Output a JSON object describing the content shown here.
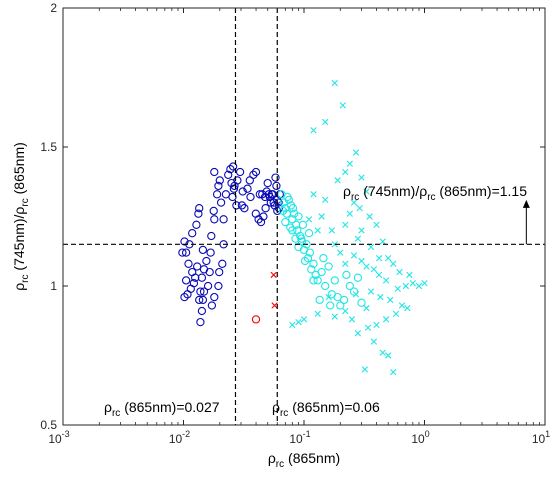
{
  "chart_data": {
    "type": "scatter",
    "xscale": "log",
    "xlim": [
      0.001,
      10
    ],
    "ylim": [
      0.5,
      2
    ],
    "x_ticks": [
      {
        "value": 0.001,
        "base": "10",
        "exp": "-3"
      },
      {
        "value": 0.01,
        "base": "10",
        "exp": "-2"
      },
      {
        "value": 0.1,
        "base": "10",
        "exp": "-1"
      },
      {
        "value": 1,
        "base": "10",
        "exp": "0"
      },
      {
        "value": 10,
        "base": "10",
        "exp": "1"
      }
    ],
    "y_ticks": [
      {
        "value": 0.5,
        "label": "0.5"
      },
      {
        "value": 1,
        "label": "1"
      },
      {
        "value": 1.5,
        "label": "1.5"
      },
      {
        "value": 2,
        "label": "2"
      }
    ],
    "xlabel": {
      "rho": "ρ",
      "sub": "rc",
      "rest": " (865nm)"
    },
    "ylabel": {
      "rho1": "ρ",
      "sub1": "rc",
      "mid": " (745nm)/",
      "rho2": "ρ",
      "sub2": "rc",
      "rest": " (865nm)"
    },
    "grid": false,
    "reference_lines": [
      {
        "orientation": "vertical",
        "value": 0.027,
        "style": "dashed",
        "label": {
          "rho": "ρ",
          "sub": "rc",
          "rest": " (865nm)=0.027"
        }
      },
      {
        "orientation": "vertical",
        "value": 0.06,
        "style": "dashed",
        "label": {
          "rho": "ρ",
          "sub": "rc",
          "rest": " (865nm)=0.06"
        }
      },
      {
        "orientation": "horizontal",
        "value": 1.15,
        "style": "dashed",
        "label": {
          "rho1": "ρ",
          "sub1": "rc",
          "mid": " (745nm)/",
          "rho2": "ρ",
          "sub2": "rc",
          "rest": " (865nm)=1.15"
        }
      }
    ],
    "arrow": {
      "x": 7,
      "from_y": 1.15,
      "to_y": 1.31
    },
    "series": [
      {
        "marker": "circle",
        "color": "#0a0ab4",
        "points": [
          [
            0.0138,
            0.87
          ],
          [
            0.0142,
            0.91
          ],
          [
            0.0135,
            0.95
          ],
          [
            0.0148,
            0.98
          ],
          [
            0.016,
            1.0
          ],
          [
            0.0125,
            1.03
          ],
          [
            0.013,
            1.07
          ],
          [
            0.0118,
            1.05
          ],
          [
            0.0105,
            1.02
          ],
          [
            0.011,
            1.08
          ],
          [
            0.0102,
            1.16
          ],
          [
            0.0112,
            1.15
          ],
          [
            0.0118,
            1.19
          ],
          [
            0.0105,
            1.12
          ],
          [
            0.0108,
            0.97
          ],
          [
            0.0102,
            0.96
          ],
          [
            0.0115,
            0.99
          ],
          [
            0.0122,
            1.01
          ],
          [
            0.0098,
            1.12
          ],
          [
            0.0128,
            1.22
          ],
          [
            0.0133,
            1.26
          ],
          [
            0.0135,
            1.28
          ],
          [
            0.0145,
            1.13
          ],
          [
            0.0155,
            1.09
          ],
          [
            0.0148,
            1.06
          ],
          [
            0.0142,
            1.03
          ],
          [
            0.0138,
            0.98
          ],
          [
            0.0145,
            0.95
          ],
          [
            0.0165,
            1.05
          ],
          [
            0.0168,
            1.12
          ],
          [
            0.017,
            1.18
          ],
          [
            0.018,
            1.24
          ],
          [
            0.0178,
            1.27
          ],
          [
            0.019,
            1.33
          ],
          [
            0.0195,
            1.36
          ],
          [
            0.018,
            1.41
          ],
          [
            0.02,
            1.38
          ],
          [
            0.0205,
            1.3
          ],
          [
            0.0215,
            1.24
          ],
          [
            0.0215,
            1.15
          ],
          [
            0.021,
            1.08
          ],
          [
            0.0198,
            1.05
          ],
          [
            0.0195,
            1.0
          ],
          [
            0.018,
            0.96
          ],
          [
            0.0172,
            0.93
          ],
          [
            0.0225,
            1.33
          ],
          [
            0.0235,
            1.4
          ],
          [
            0.025,
            1.37
          ],
          [
            0.0258,
            1.43
          ],
          [
            0.0262,
            1.35
          ],
          [
            0.0275,
            1.29
          ],
          [
            0.028,
            1.38
          ],
          [
            0.0295,
            1.41
          ],
          [
            0.0305,
            1.29
          ],
          [
            0.032,
            1.28
          ],
          [
            0.034,
            1.35
          ],
          [
            0.0355,
            1.38
          ],
          [
            0.036,
            1.32
          ],
          [
            0.038,
            1.4
          ],
          [
            0.04,
            1.41
          ],
          [
            0.0398,
            1.26
          ],
          [
            0.042,
            1.24
          ],
          [
            0.043,
            1.33
          ],
          [
            0.045,
            1.33
          ],
          [
            0.048,
            1.28
          ],
          [
            0.049,
            1.34
          ],
          [
            0.05,
            1.37
          ],
          [
            0.051,
            1.33
          ],
          [
            0.052,
            1.32
          ],
          [
            0.054,
            1.33
          ],
          [
            0.055,
            1.33
          ],
          [
            0.056,
            1.3
          ],
          [
            0.057,
            1.29
          ],
          [
            0.058,
            1.39
          ],
          [
            0.059,
            1.36
          ],
          [
            0.06,
            1.31
          ],
          [
            0.06,
            1.27
          ],
          [
            0.0615,
            1.3
          ],
          [
            0.062,
            1.28
          ],
          [
            0.063,
            1.33
          ],
          [
            0.046,
            1.25
          ],
          [
            0.044,
            1.23
          ],
          [
            0.053,
            1.3
          ],
          [
            0.0475,
            1.32
          ],
          [
            0.0265,
            1.36
          ],
          [
            0.0255,
            1.32
          ],
          [
            0.031,
            1.34
          ],
          [
            0.0245,
            1.42
          ]
        ]
      },
      {
        "marker": "circle",
        "color": "#ff0000",
        "points": [
          [
            0.04,
            0.88
          ]
        ]
      },
      {
        "marker": "x",
        "color": "#ff0000",
        "points": [
          [
            0.056,
            1.04
          ],
          [
            0.057,
            0.93
          ]
        ]
      },
      {
        "marker": "circle",
        "color": "#22e6e6",
        "points": [
          [
            0.065,
            1.33
          ],
          [
            0.068,
            1.3
          ],
          [
            0.07,
            1.28
          ],
          [
            0.072,
            1.26
          ],
          [
            0.075,
            1.31
          ],
          [
            0.078,
            1.29
          ],
          [
            0.08,
            1.24
          ],
          [
            0.083,
            1.26
          ],
          [
            0.086,
            1.22
          ],
          [
            0.088,
            1.2
          ],
          [
            0.09,
            1.25
          ],
          [
            0.093,
            1.18
          ],
          [
            0.096,
            1.16
          ],
          [
            0.1,
            1.13
          ],
          [
            0.105,
            1.15
          ],
          [
            0.108,
            1.1
          ],
          [
            0.112,
            1.12
          ],
          [
            0.115,
            1.06
          ],
          [
            0.12,
            1.08
          ],
          [
            0.125,
            1.04
          ],
          [
            0.13,
            1.02
          ],
          [
            0.14,
            1.05
          ],
          [
            0.145,
            1.1
          ],
          [
            0.15,
            1.0
          ],
          [
            0.16,
            1.07
          ],
          [
            0.17,
            0.97
          ],
          [
            0.18,
            1.02
          ],
          [
            0.19,
            0.96
          ],
          [
            0.2,
            0.93
          ],
          [
            0.215,
            0.95
          ],
          [
            0.225,
            1.04
          ],
          [
            0.24,
            1.0
          ],
          [
            0.26,
            0.98
          ],
          [
            0.08,
            1.2
          ],
          [
            0.085,
            1.17
          ],
          [
            0.07,
            1.23
          ],
          [
            0.098,
            1.22
          ],
          [
            0.077,
            1.21
          ],
          [
            0.11,
            1.19
          ],
          [
            0.09,
            1.14
          ],
          [
            0.12,
            1.02
          ],
          [
            0.135,
            0.95
          ],
          [
            0.165,
            0.93
          ],
          [
            0.3,
            0.94
          ],
          [
            0.28,
            1.03
          ],
          [
            0.067,
            1.27
          ],
          [
            0.073,
            1.32
          ],
          [
            0.081,
            1.28
          ],
          [
            0.095,
            1.17
          ],
          [
            0.102,
            1.09
          ]
        ]
      },
      {
        "marker": "x",
        "color": "#22e6e6",
        "points": [
          [
            0.18,
            1.73
          ],
          [
            0.21,
            1.65
          ],
          [
            0.15,
            1.59
          ],
          [
            0.12,
            1.56
          ],
          [
            0.27,
            1.48
          ],
          [
            0.24,
            1.44
          ],
          [
            0.3,
            1.39
          ],
          [
            0.22,
            1.41
          ],
          [
            0.19,
            1.38
          ],
          [
            0.33,
            1.34
          ],
          [
            0.15,
            1.31
          ],
          [
            0.12,
            1.33
          ],
          [
            0.26,
            1.3
          ],
          [
            0.29,
            1.28
          ],
          [
            0.35,
            1.25
          ],
          [
            0.4,
            1.22
          ],
          [
            0.22,
            1.22
          ],
          [
            0.17,
            1.2
          ],
          [
            0.14,
            1.25
          ],
          [
            0.18,
            1.15
          ],
          [
            0.28,
            1.17
          ],
          [
            0.45,
            1.16
          ],
          [
            0.5,
            1.1
          ],
          [
            0.55,
            1.08
          ],
          [
            0.62,
            1.05
          ],
          [
            0.7,
            1.0
          ],
          [
            0.8,
            1.01
          ],
          [
            0.9,
            1.0
          ],
          [
            1.0,
            1.01
          ],
          [
            0.75,
            1.04
          ],
          [
            0.6,
            0.99
          ],
          [
            0.48,
            1.02
          ],
          [
            0.42,
            1.04
          ],
          [
            0.38,
            1.06
          ],
          [
            0.33,
            1.07
          ],
          [
            0.3,
            1.09
          ],
          [
            0.26,
            1.11
          ],
          [
            0.22,
            1.08
          ],
          [
            0.2,
            1.12
          ],
          [
            0.36,
            0.98
          ],
          [
            0.43,
            0.96
          ],
          [
            0.52,
            0.95
          ],
          [
            0.65,
            0.93
          ],
          [
            0.72,
            0.92
          ],
          [
            0.58,
            0.9
          ],
          [
            0.48,
            0.88
          ],
          [
            0.4,
            0.86
          ],
          [
            0.34,
            0.85
          ],
          [
            0.28,
            0.83
          ],
          [
            0.38,
            0.8
          ],
          [
            0.5,
            0.75
          ],
          [
            0.45,
            0.76
          ],
          [
            0.32,
            0.7
          ],
          [
            0.55,
            0.69
          ],
          [
            0.25,
            0.88
          ],
          [
            0.22,
            0.91
          ],
          [
            0.18,
            0.89
          ],
          [
            0.09,
            0.87
          ],
          [
            0.08,
            0.86
          ],
          [
            0.1,
            0.88
          ],
          [
            0.13,
            0.9
          ],
          [
            0.16,
            0.96
          ],
          [
            0.11,
            1.24
          ],
          [
            0.13,
            1.2
          ],
          [
            0.24,
            1.26
          ],
          [
            0.3,
            1.2
          ],
          [
            0.36,
            1.14
          ],
          [
            0.42,
            1.1
          ],
          [
            0.27,
            0.97
          ],
          [
            0.33,
            0.92
          ]
        ]
      }
    ]
  }
}
